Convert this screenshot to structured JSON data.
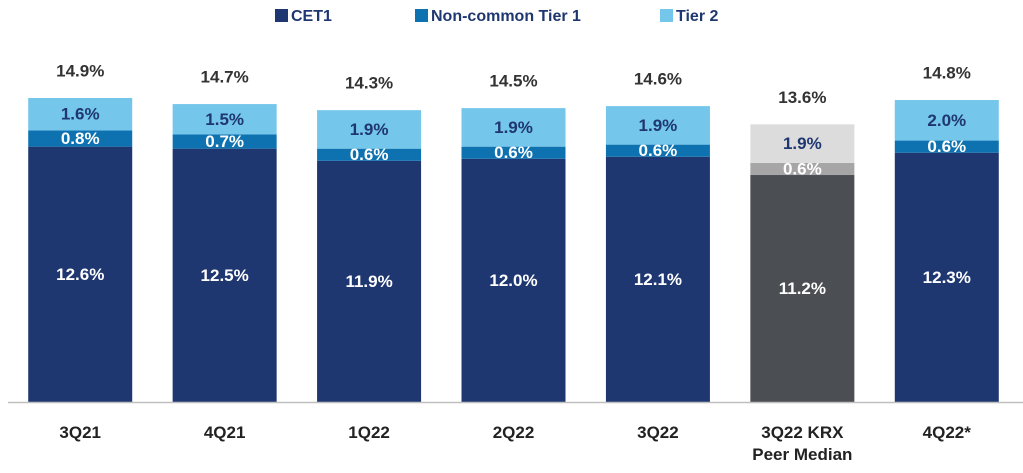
{
  "chart_data": {
    "type": "stacked_bar",
    "categories": [
      "3Q21",
      "4Q21",
      "1Q22",
      "2Q22",
      "3Q22",
      "3Q22 KRX\nPeer Median",
      "4Q22*"
    ],
    "series": [
      {
        "name": "CET1",
        "color": "#1f3770",
        "point_colors": [
          "#1f3770",
          "#1f3770",
          "#1f3770",
          "#1f3770",
          "#1f3770",
          "#4b4e52",
          "#1f3770"
        ],
        "values": [
          12.6,
          12.5,
          11.9,
          12.0,
          12.1,
          11.2,
          12.3
        ],
        "value_labels": [
          "12.6%",
          "12.5%",
          "11.9%",
          "12.0%",
          "12.1%",
          "11.2%",
          "12.3%"
        ]
      },
      {
        "name": "Non-common Tier 1",
        "color": "#0e72b0",
        "point_colors": [
          "#0e72b0",
          "#0e72b0",
          "#0e72b0",
          "#0e72b0",
          "#0e72b0",
          "#a6a6a6",
          "#0e72b0"
        ],
        "values": [
          0.8,
          0.7,
          0.6,
          0.6,
          0.6,
          0.6,
          0.6
        ],
        "value_labels": [
          "0.8%",
          "0.7%",
          "0.6%",
          "0.6%",
          "0.6%",
          "0.6%",
          "0.6%"
        ]
      },
      {
        "name": "Tier 2",
        "color": "#74c6ea",
        "point_colors": [
          "#74c6ea",
          "#74c6ea",
          "#74c6ea",
          "#74c6ea",
          "#74c6ea",
          "#dcdcdc",
          "#74c6ea"
        ],
        "values": [
          1.6,
          1.5,
          1.9,
          1.9,
          1.9,
          1.9,
          2.0
        ],
        "value_labels": [
          "1.6%",
          "1.5%",
          "1.9%",
          "1.9%",
          "1.9%",
          "1.9%",
          "2.0%"
        ]
      }
    ],
    "totals": {
      "values": [
        14.9,
        14.7,
        14.3,
        14.5,
        14.6,
        13.6,
        14.8
      ],
      "value_labels": [
        "14.9%",
        "14.7%",
        "14.3%",
        "14.5%",
        "14.6%",
        "13.6%",
        "14.8%"
      ]
    },
    "grid": false
  }
}
